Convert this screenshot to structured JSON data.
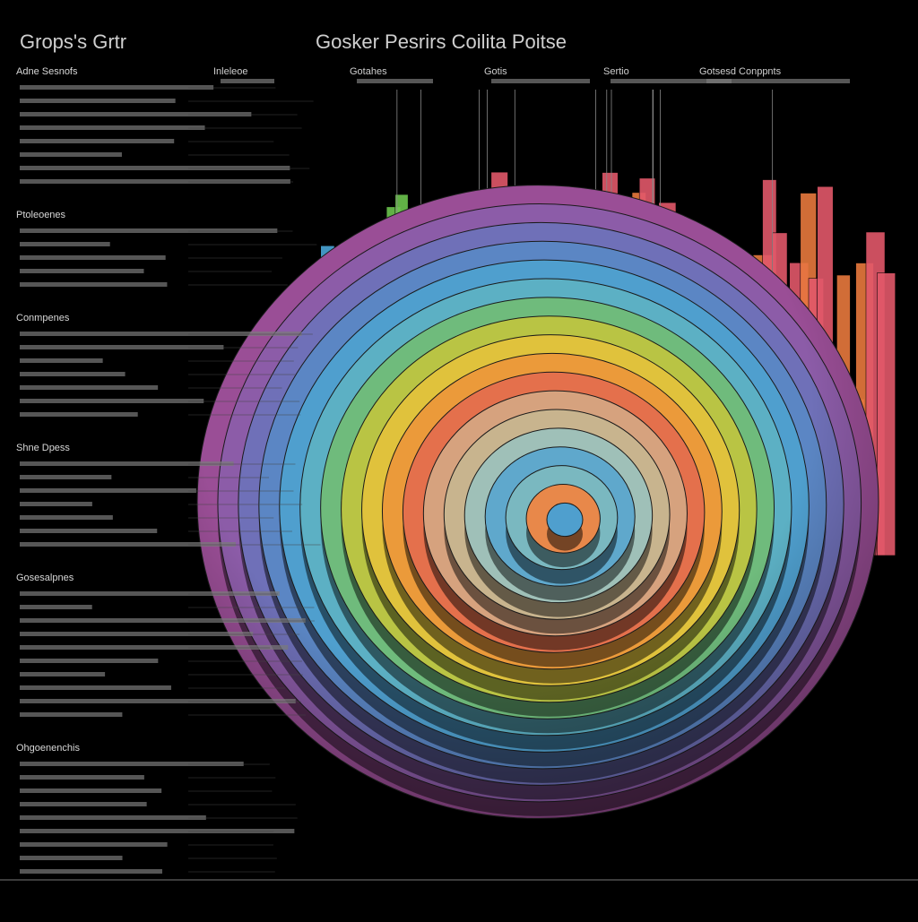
{
  "header": {
    "title": "Grops's Grtr",
    "subtitle": "Gosker Pesrirs Coilita Poitse"
  },
  "columns": [
    "Inleleoe",
    "Gotahes",
    "Gotis",
    "Sertio",
    "Gotsesd Conppnts"
  ],
  "sidebar": {
    "sections": [
      "Adne Sesnofs",
      "Ptoleoenes",
      "Conmpenes",
      "Shne Dpess",
      "Gosesalpnes",
      "Ohgoenenchis"
    ]
  }
}
